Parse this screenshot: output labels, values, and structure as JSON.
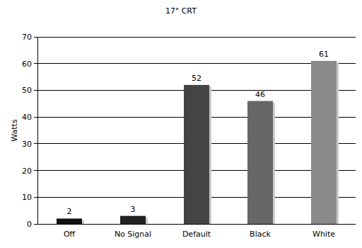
{
  "chart_data": {
    "type": "bar",
    "title": "17\" CRT",
    "y_label": "Watts",
    "categories": [
      "Off",
      "No Signal",
      "Default",
      "Black",
      "White"
    ],
    "values": [
      2,
      3,
      52,
      46,
      61
    ],
    "colors": [
      "#111111",
      "#222222",
      "#444444",
      "#666666",
      "#8a8a8a"
    ],
    "ylim": [
      0,
      70
    ],
    "yticks": [
      0,
      10,
      20,
      30,
      40,
      50,
      60,
      70
    ],
    "grid": true,
    "data_labels": true
  }
}
